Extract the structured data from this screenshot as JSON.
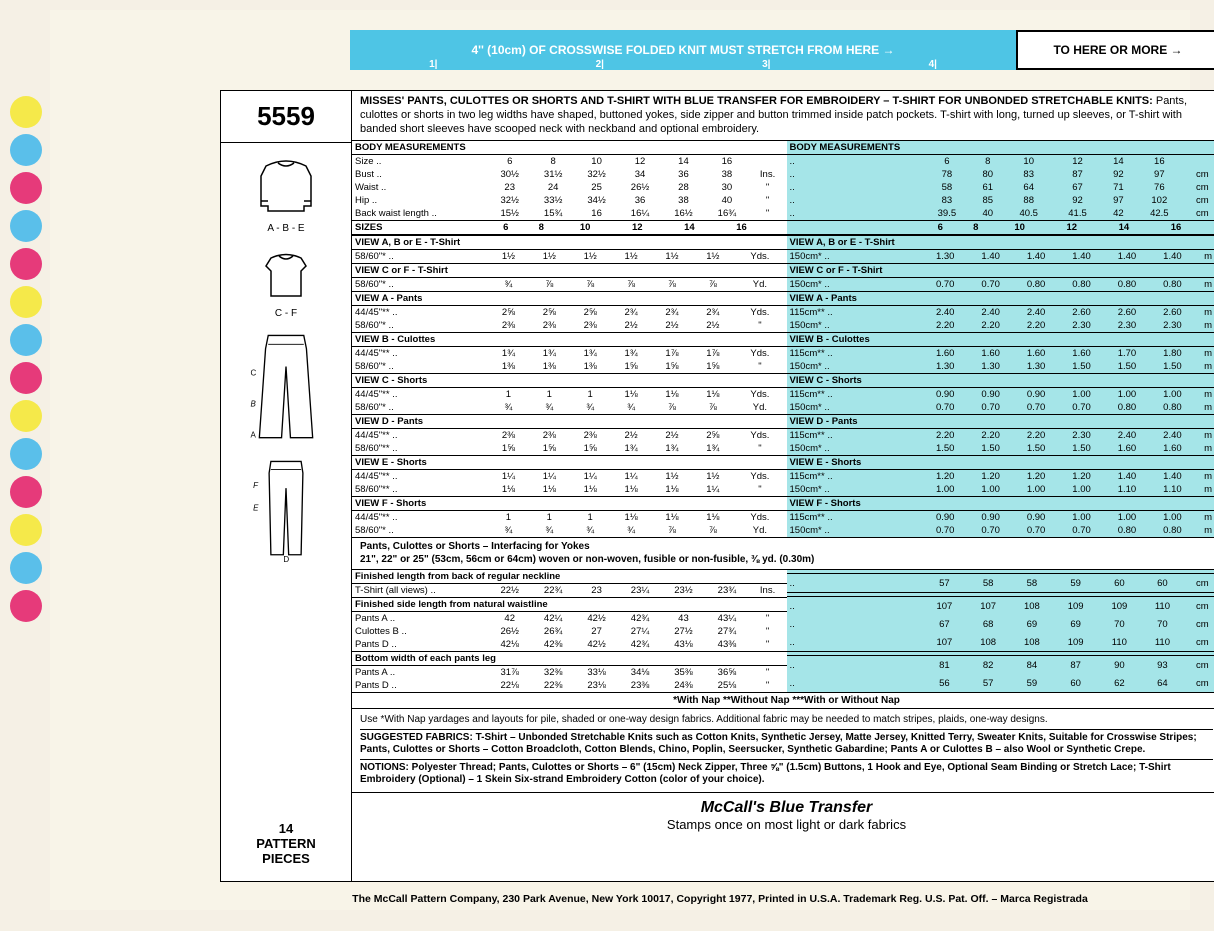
{
  "stretch_bar": {
    "blue_text": "4'' (10cm) OF CROSSWISE FOLDED KNIT MUST STRETCH FROM HERE →",
    "ticks": [
      "1|",
      "2|",
      "3|",
      "4|"
    ],
    "white_text": "TO HERE OR MORE →"
  },
  "pattern_number": "5559",
  "sketches": [
    {
      "label": "A - B - E"
    },
    {
      "label": "C - F"
    },
    {
      "label": "C  B  A"
    },
    {
      "label": "F  E  D"
    }
  ],
  "pattern_pieces": "14\nPATTERN\nPIECES",
  "desc_title": "MISSES' PANTS, CULOTTES OR SHORTS AND T-SHIRT WITH BLUE TRANSFER FOR EMBROIDERY – T-SHIRT FOR UNBONDED STRETCHABLE KNITS:",
  "desc_body": " Pants, culottes or shorts in two leg widths have shaped, buttoned yokes, side zipper and button trimmed inside patch pockets. T-shirt with long, turned up sleeves, or T-shirt with banded short sleeves have scooped neck with neckband and optional embroidery.",
  "sizes_hdr": "SIZES",
  "sizes": [
    "6",
    "8",
    "10",
    "12",
    "14",
    "16"
  ],
  "body_meas_hdr_imp": "BODY MEASUREMENTS",
  "body_meas_hdr_met": "BODY MEASUREMENTS",
  "body_imp": [
    {
      "label": "Size",
      "v": [
        "6",
        "8",
        "10",
        "12",
        "14",
        "16",
        ""
      ]
    },
    {
      "label": "Bust",
      "v": [
        "30½",
        "31½",
        "32½",
        "34",
        "36",
        "38",
        "Ins."
      ]
    },
    {
      "label": "Waist",
      "v": [
        "23",
        "24",
        "25",
        "26½",
        "28",
        "30",
        "\""
      ]
    },
    {
      "label": "Hip",
      "v": [
        "32½",
        "33½",
        "34½",
        "36",
        "38",
        "40",
        "\""
      ]
    },
    {
      "label": "Back waist length",
      "v": [
        "15½",
        "15¾",
        "16",
        "16¼",
        "16½",
        "16¾",
        "\""
      ]
    }
  ],
  "body_met": [
    {
      "label": "",
      "v": [
        "6",
        "8",
        "10",
        "12",
        "14",
        "16",
        ""
      ]
    },
    {
      "label": "",
      "v": [
        "78",
        "80",
        "83",
        "87",
        "92",
        "97",
        "cm"
      ]
    },
    {
      "label": "",
      "v": [
        "58",
        "61",
        "64",
        "67",
        "71",
        "76",
        "cm"
      ]
    },
    {
      "label": "",
      "v": [
        "83",
        "85",
        "88",
        "92",
        "97",
        "102",
        "cm"
      ]
    },
    {
      "label": "",
      "v": [
        "39.5",
        "40",
        "40.5",
        "41.5",
        "42",
        "42.5",
        "cm"
      ]
    }
  ],
  "yardage_imp": [
    {
      "hdr": "VIEW A, B or E - T-Shirt"
    },
    {
      "label": "58/60\"*",
      "v": [
        "1½",
        "1½",
        "1½",
        "1½",
        "1½",
        "1½",
        "Yds."
      ]
    },
    {
      "hdr": "VIEW C or F - T-Shirt"
    },
    {
      "label": "58/60\"*",
      "v": [
        "¾",
        "⅞",
        "⅞",
        "⅞",
        "⅞",
        "⅞",
        "Yd."
      ]
    },
    {
      "hdr": "VIEW A - Pants"
    },
    {
      "label": "44/45\"**",
      "v": [
        "2⅝",
        "2⅝",
        "2⅝",
        "2¾",
        "2¾",
        "2¾",
        "Yds."
      ]
    },
    {
      "label": "58/60\"*",
      "v": [
        "2⅜",
        "2⅜",
        "2⅜",
        "2½",
        "2½",
        "2½",
        "\""
      ]
    },
    {
      "hdr": "VIEW B - Culottes"
    },
    {
      "label": "44/45\"**",
      "v": [
        "1¾",
        "1¾",
        "1¾",
        "1¾",
        "1⅞",
        "1⅞",
        "Yds."
      ]
    },
    {
      "label": "58/60\"*",
      "v": [
        "1⅜",
        "1⅜",
        "1⅜",
        "1⅝",
        "1⅝",
        "1⅝",
        "\""
      ]
    },
    {
      "hdr": "VIEW C - Shorts"
    },
    {
      "label": "44/45\"**",
      "v": [
        "1",
        "1",
        "1",
        "1⅛",
        "1⅛",
        "1⅛",
        "Yds."
      ]
    },
    {
      "label": "58/60\"*",
      "v": [
        "¾",
        "¾",
        "¾",
        "¾",
        "⅞",
        "⅞",
        "Yd."
      ]
    },
    {
      "hdr": "VIEW D - Pants"
    },
    {
      "label": "44/45\"**",
      "v": [
        "2⅜",
        "2⅜",
        "2⅜",
        "2½",
        "2½",
        "2⅝",
        "Yds."
      ]
    },
    {
      "label": "58/60\"**",
      "v": [
        "1⅝",
        "1⅝",
        "1⅝",
        "1¾",
        "1¾",
        "1¾",
        "\""
      ]
    },
    {
      "hdr": "VIEW E - Shorts"
    },
    {
      "label": "44/45\"**",
      "v": [
        "1¼",
        "1¼",
        "1¼",
        "1¼",
        "1½",
        "1½",
        "Yds."
      ]
    },
    {
      "label": "58/60\"**",
      "v": [
        "1⅛",
        "1⅛",
        "1⅛",
        "1⅛",
        "1⅛",
        "1¼",
        "\""
      ]
    },
    {
      "hdr": "VIEW F - Shorts"
    },
    {
      "label": "44/45\"**",
      "v": [
        "1",
        "1",
        "1",
        "1⅛",
        "1⅛",
        "1⅛",
        "Yds."
      ]
    },
    {
      "label": "58/60\"*",
      "v": [
        "¾",
        "¾",
        "¾",
        "¾",
        "⅞",
        "⅞",
        "Yd."
      ]
    }
  ],
  "yardage_met": [
    {
      "hdr": "VIEW A, B or E - T-Shirt"
    },
    {
      "label": "150cm*",
      "v": [
        "1.30",
        "1.40",
        "1.40",
        "1.40",
        "1.40",
        "1.40",
        "m"
      ]
    },
    {
      "hdr": "VIEW C or F - T-Shirt"
    },
    {
      "label": "150cm*",
      "v": [
        "0.70",
        "0.70",
        "0.80",
        "0.80",
        "0.80",
        "0.80",
        "m"
      ]
    },
    {
      "hdr": "VIEW A - Pants"
    },
    {
      "label": "115cm**",
      "v": [
        "2.40",
        "2.40",
        "2.40",
        "2.60",
        "2.60",
        "2.60",
        "m"
      ]
    },
    {
      "label": "150cm*",
      "v": [
        "2.20",
        "2.20",
        "2.20",
        "2.30",
        "2.30",
        "2.30",
        "m"
      ]
    },
    {
      "hdr": "VIEW B - Culottes"
    },
    {
      "label": "115cm**",
      "v": [
        "1.60",
        "1.60",
        "1.60",
        "1.60",
        "1.70",
        "1.80",
        "m"
      ]
    },
    {
      "label": "150cm*",
      "v": [
        "1.30",
        "1.30",
        "1.30",
        "1.50",
        "1.50",
        "1.50",
        "m"
      ]
    },
    {
      "hdr": "VIEW C - Shorts"
    },
    {
      "label": "115cm**",
      "v": [
        "0.90",
        "0.90",
        "0.90",
        "1.00",
        "1.00",
        "1.00",
        "m"
      ]
    },
    {
      "label": "150cm*",
      "v": [
        "0.70",
        "0.70",
        "0.70",
        "0.70",
        "0.80",
        "0.80",
        "m"
      ]
    },
    {
      "hdr": "VIEW D - Pants"
    },
    {
      "label": "115cm**",
      "v": [
        "2.20",
        "2.20",
        "2.20",
        "2.30",
        "2.40",
        "2.40",
        "m"
      ]
    },
    {
      "label": "150cm*",
      "v": [
        "1.50",
        "1.50",
        "1.50",
        "1.50",
        "1.60",
        "1.60",
        "m"
      ]
    },
    {
      "hdr": "VIEW E - Shorts"
    },
    {
      "label": "115cm**",
      "v": [
        "1.20",
        "1.20",
        "1.20",
        "1.20",
        "1.40",
        "1.40",
        "m"
      ]
    },
    {
      "label": "150cm*",
      "v": [
        "1.00",
        "1.00",
        "1.00",
        "1.00",
        "1.10",
        "1.10",
        "m"
      ]
    },
    {
      "hdr": "VIEW F - Shorts"
    },
    {
      "label": "115cm**",
      "v": [
        "0.90",
        "0.90",
        "0.90",
        "1.00",
        "1.00",
        "1.00",
        "m"
      ]
    },
    {
      "label": "150cm*",
      "v": [
        "0.70",
        "0.70",
        "0.70",
        "0.70",
        "0.80",
        "0.80",
        "m"
      ]
    }
  ],
  "interfacing": "Pants, Culottes or Shorts – Interfacing for Yokes\n21\", 22\" or 25\" (53cm, 56cm or 64cm) woven or non-woven, fusible or non-fusible, ⅜ yd. (0.30m)",
  "finished_imp": [
    {
      "hdr": "Finished length from back of regular neckline"
    },
    {
      "label": "T-Shirt (all views)",
      "v": [
        "22½",
        "22¾",
        "23",
        "23¼",
        "23½",
        "23¾",
        "Ins."
      ]
    },
    {
      "hdr": "Finished side length from natural waistline"
    },
    {
      "label": "Pants A",
      "v": [
        "42",
        "42¼",
        "42½",
        "42¾",
        "43",
        "43¼",
        "\""
      ]
    },
    {
      "label": "Culottes B",
      "v": [
        "26½",
        "26¾",
        "27",
        "27¼",
        "27½",
        "27¾",
        "\""
      ]
    },
    {
      "label": "Pants D",
      "v": [
        "42⅛",
        "42⅜",
        "42½",
        "42¾",
        "43⅛",
        "43⅜",
        "\""
      ]
    },
    {
      "hdr": "Bottom width of each pants leg"
    },
    {
      "label": "Pants A",
      "v": [
        "31⅞",
        "32⅜",
        "33⅛",
        "34⅛",
        "35⅜",
        "36⅝",
        "\""
      ]
    },
    {
      "label": "Pants D",
      "v": [
        "22⅛",
        "22⅜",
        "23⅛",
        "23⅜",
        "24⅜",
        "25⅛",
        "\""
      ]
    }
  ],
  "finished_met": [
    {
      "hdr": ""
    },
    {
      "label": "",
      "v": [
        "57",
        "58",
        "58",
        "59",
        "60",
        "60",
        "cm"
      ]
    },
    {
      "hdr": ""
    },
    {
      "label": "",
      "v": [
        "107",
        "107",
        "108",
        "109",
        "109",
        "110",
        "cm"
      ]
    },
    {
      "label": "",
      "v": [
        "67",
        "68",
        "69",
        "69",
        "70",
        "70",
        "cm"
      ]
    },
    {
      "label": "",
      "v": [
        "107",
        "108",
        "108",
        "109",
        "110",
        "110",
        "cm"
      ]
    },
    {
      "hdr": ""
    },
    {
      "label": "",
      "v": [
        "81",
        "82",
        "84",
        "87",
        "90",
        "93",
        "cm"
      ]
    },
    {
      "label": "",
      "v": [
        "56",
        "57",
        "59",
        "60",
        "62",
        "64",
        "cm"
      ]
    }
  ],
  "nap_legend": "*With Nap        **Without Nap        ***With or Without Nap",
  "notes": [
    "Use *With Nap yardages and layouts for pile, shaded or one-way design fabrics. Additional fabric may be needed to match stripes, plaids, one-way designs.",
    "SUGGESTED FABRICS: T-Shirt – Unbonded Stretchable Knits such as Cotton Knits, Synthetic Jersey, Matte Jersey, Knitted Terry, Sweater Knits, Suitable for Crosswise Stripes; Pants, Culottes or Shorts – Cotton Broadcloth, Cotton Blends, Chino, Poplin, Seersucker, Synthetic Gabardine; Pants A or Culottes B – also Wool or Synthetic Crepe.",
    "NOTIONS: Polyester Thread; Pants, Culottes or Shorts – 6\" (15cm) Neck Zipper, Three ⅝\" (1.5cm) Buttons, 1 Hook and Eye, Optional Seam Binding or Stretch Lace; T-Shirt Embroidery (Optional) – 1 Skein Six-strand Embroidery Cotton (color of your choice)."
  ],
  "blue_transfer_title": "McCall's Blue Transfer",
  "blue_transfer_sub": "Stamps once on most light or dark fabrics",
  "footer": "The McCall Pattern Company, 230 Park Avenue, New York 10017, Copyright 1977, Printed in U.S.A. Trademark Reg. U.S. Pat. Off. – Marca Registrada",
  "dot_colors": [
    "#f5e94a",
    "#5abfea",
    "#e63a7a",
    "#5abfea",
    "#e63a7a",
    "#f5e94a",
    "#5abfea",
    "#e63a7a",
    "#f5e94a",
    "#5abfea",
    "#e63a7a",
    "#f5e94a",
    "#5abfea",
    "#e63a7a"
  ]
}
